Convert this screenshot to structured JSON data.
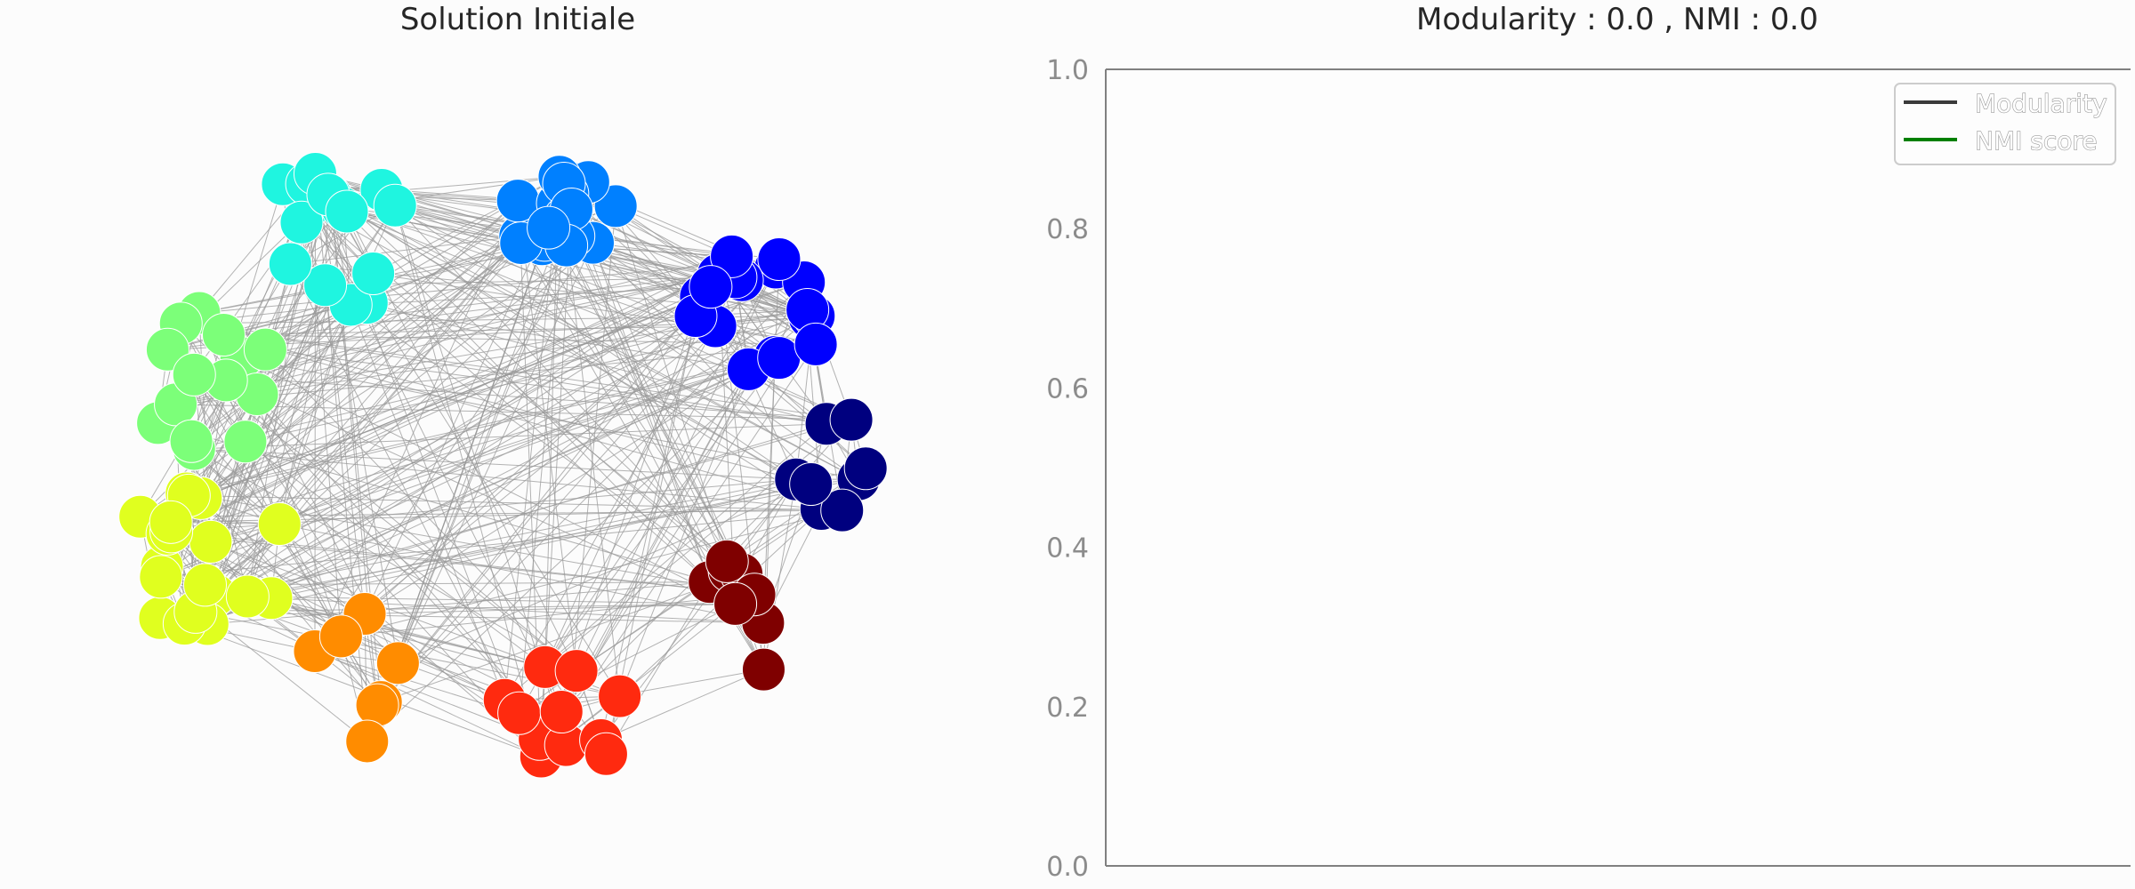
{
  "left_panel": {
    "title": "Solution Initiale"
  },
  "right_panel": {
    "title": "Modularity : 0.0 , NMI :  0.0"
  },
  "colors": {
    "edge": "#999999",
    "node_stroke": "#ffffff",
    "axis": "#808080",
    "modularity_line": "#3a3a3a",
    "nmi_line": "#008000",
    "communities": [
      "#1ff5e0",
      "#0080ff",
      "#0000ff",
      "#00007f",
      "#7f0000",
      "#ff2a0f",
      "#ff8c00",
      "#e0ff1f",
      "#7cff79"
    ]
  },
  "chart_data": [
    {
      "type": "network",
      "title": "Solution Initiale",
      "node_counts_per_community": [
        16,
        18,
        18,
        8,
        8,
        11,
        7,
        19,
        14
      ],
      "community_colors": [
        "#1ff5e0",
        "#0080ff",
        "#0000ff",
        "#00007f",
        "#7f0000",
        "#ff2a0f",
        "#ff8c00",
        "#e0ff1f",
        "#7cff79"
      ]
    },
    {
      "type": "line",
      "title": "Modularity : 0.0 , NMI :  0.0",
      "ylim": [
        0.0,
        1.0
      ],
      "yticks": [
        "0.0",
        "0.2",
        "0.4",
        "0.6",
        "0.8",
        "1.0"
      ],
      "legend_position": "top-right",
      "series": [
        {
          "name": "Modularity",
          "color": "#3a3a3a",
          "values": []
        },
        {
          "name": "NMI score",
          "color": "#008000",
          "values": []
        }
      ]
    }
  ]
}
